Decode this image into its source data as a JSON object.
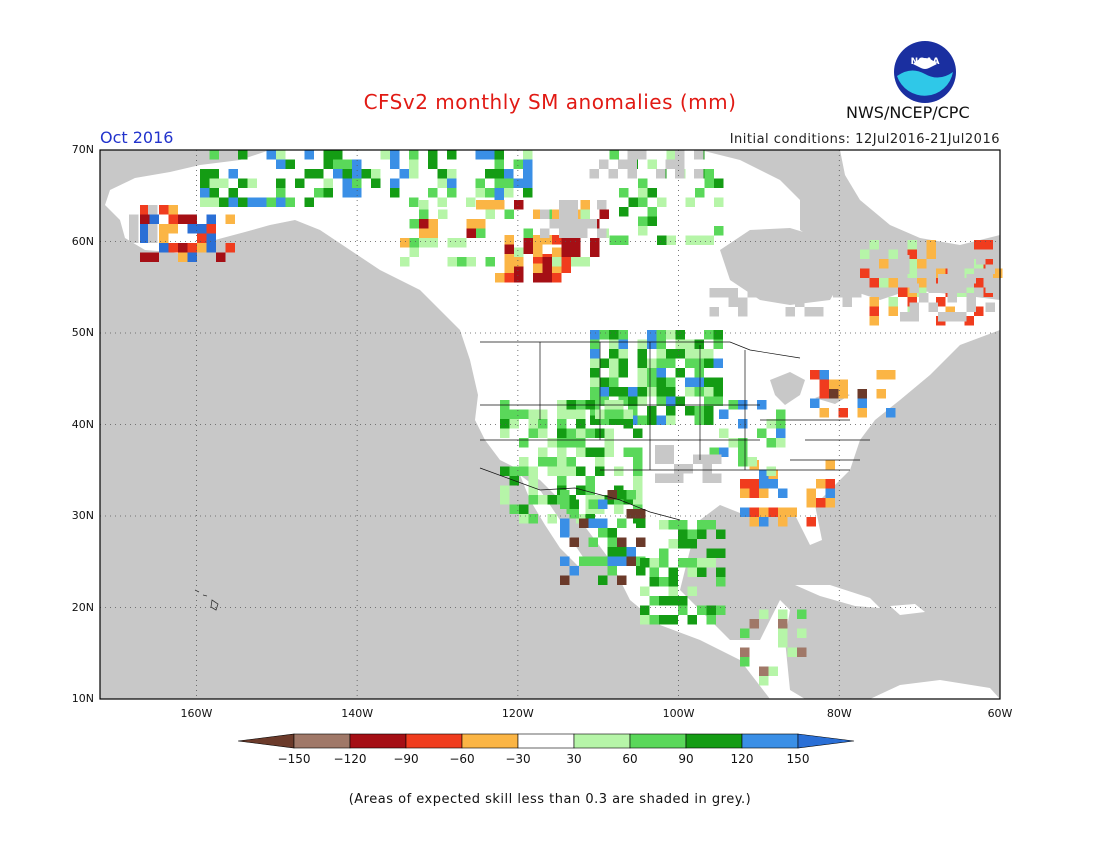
{
  "header": {
    "title": "CFSv2 monthly SM anomalies (mm)",
    "month": "Oct 2016",
    "initial_conditions": "Initial conditions: 12Jul2016-21Jul2016",
    "org": "NWS/NCEP/CPC",
    "logo_text": "NOAA"
  },
  "map": {
    "lat_labels": [
      "70N",
      "60N",
      "50N",
      "40N",
      "30N",
      "20N",
      "10N"
    ],
    "lon_labels": [
      "160W",
      "140W",
      "120W",
      "100W",
      "80W",
      "60W"
    ],
    "lat_range": [
      10,
      70
    ],
    "lon_range": [
      -172,
      -60
    ],
    "grid": "dotted"
  },
  "colorbar": {
    "labels": [
      "-150",
      "-120",
      "-90",
      "-60",
      "-30",
      "30",
      "60",
      "90",
      "120",
      "150"
    ],
    "colors": [
      "#6b3a2a",
      "#a07868",
      "#a50f15",
      "#f03c1e",
      "#fbb545",
      "#ffffff",
      "#b6f5a8",
      "#5ad85a",
      "#149c14",
      "#3a8fe6",
      "#2a6fd6"
    ]
  },
  "footnote": "(Areas of expected skill less than 0.3 are shaded in grey.)",
  "colors": {
    "ocean": "#c8c8c8",
    "land": "#ffffff",
    "title": "#e11a14",
    "month": "#2233cc"
  }
}
